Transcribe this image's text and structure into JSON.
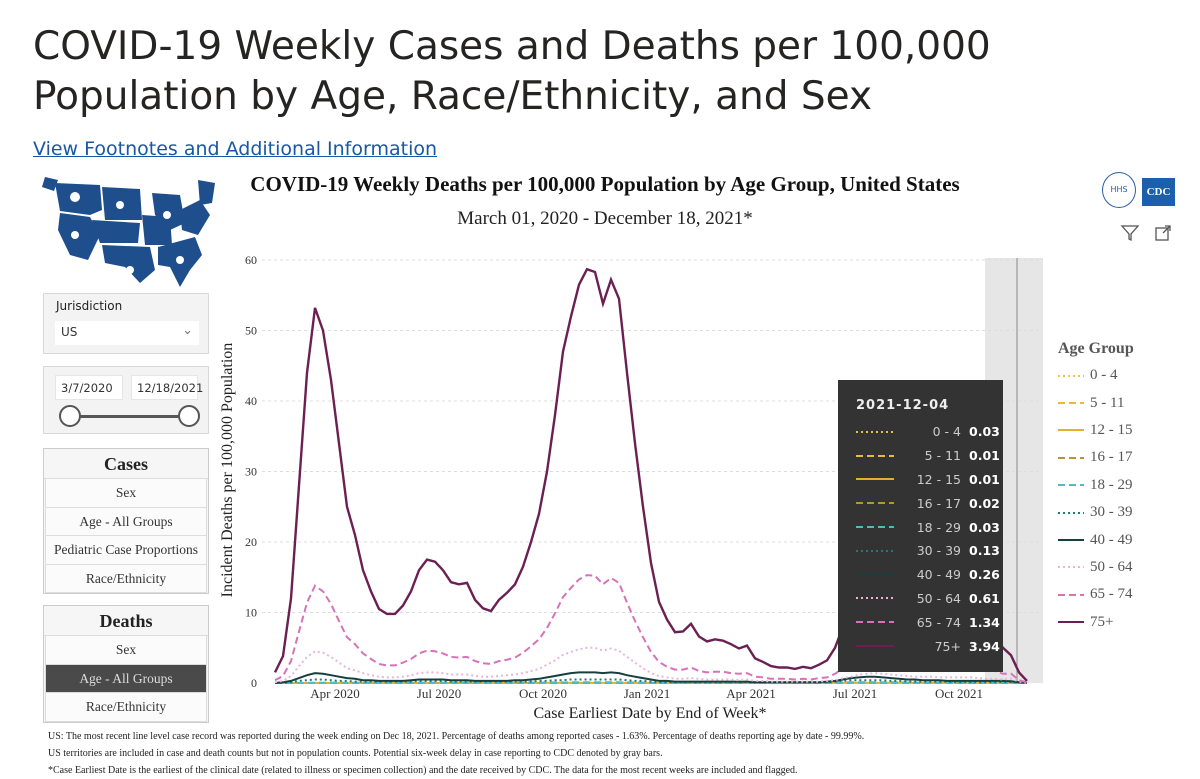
{
  "page": {
    "title": "COVID-19 Weekly Cases and Deaths per 100,000 Population by Age, Race/Ethnicity, and Sex",
    "footnote_link": "View Footnotes and Additional Information"
  },
  "logos": {
    "hhs": "HHS",
    "cdc": "CDC"
  },
  "filters": {
    "jurisdiction_label": "Jurisdiction",
    "jurisdiction_value": "US",
    "date_start": "3/7/2020",
    "date_end": "12/18/2021"
  },
  "cases": {
    "header": "Cases",
    "items": [
      "Sex",
      "Age - All Groups",
      "Pediatric Case Proportions",
      "Race/Ethnicity"
    ]
  },
  "deaths": {
    "header": "Deaths",
    "items": [
      "Sex",
      "Age - All Groups",
      "Race/Ethnicity"
    ],
    "selected": "Age - All Groups"
  },
  "tooltip": {
    "date": "2021-12-04",
    "rows": [
      {
        "group": "0 - 4",
        "value": "0.03"
      },
      {
        "group": "5 - 11",
        "value": "0.01"
      },
      {
        "group": "12 - 15",
        "value": "0.01"
      },
      {
        "group": "16 - 17",
        "value": "0.02"
      },
      {
        "group": "18 - 29",
        "value": "0.03"
      },
      {
        "group": "30 - 39",
        "value": "0.13"
      },
      {
        "group": "40 - 49",
        "value": "0.26"
      },
      {
        "group": "50 - 64",
        "value": "0.61"
      },
      {
        "group": "65 - 74",
        "value": "1.34"
      },
      {
        "group": "75+",
        "value": "3.94"
      }
    ]
  },
  "footnotes": [
    "US: The most recent line level case record was reported during the week ending on Dec 18, 2021. Percentage of deaths among reported cases - 1.63%. Percentage of deaths reporting age by date - 99.99%.",
    "US territories are included in case and death counts but not in population counts. Potential six-week delay in case reporting to CDC denoted by gray bars.",
    "*Case Earliest Date is the earliest of the clinical date (related to illness or specimen collection) and the date received by CDC. The data for the most recent weeks are included and flagged."
  ],
  "chart_data": {
    "type": "line",
    "title": "COVID-19 Weekly Deaths per 100,000 Population by Age Group, United States",
    "subtitle": "March 01, 2020 - December 18, 2021*",
    "xlabel": "Case Earliest Date by End of Week*",
    "ylabel": "Incident Deaths per 100,000 Population",
    "ylim": [
      0,
      60
    ],
    "yticks": [
      "0",
      "10",
      "20",
      "30",
      "40",
      "50",
      "60"
    ],
    "xticks": [
      {
        "label": "Apr 2020",
        "week": 4
      },
      {
        "label": "Jul 2020",
        "week": 17
      },
      {
        "label": "Oct 2020",
        "week": 30
      },
      {
        "label": "Jan 2021",
        "week": 43
      },
      {
        "label": "Apr 2021",
        "week": 56
      },
      {
        "label": "Jul 2021",
        "week": 69
      },
      {
        "label": "Oct 2021",
        "week": 82
      }
    ],
    "x_start": "2020-03-07",
    "x_interval": "weekly",
    "gray_delay_weeks": 6,
    "legend_title": "Age Group",
    "legend_position": "right",
    "grid": true,
    "series": [
      {
        "name": "0 - 4",
        "color": "#e3c54c",
        "dash": "dot",
        "values": [
          0,
          0,
          0,
          0,
          0.01,
          0.01,
          0.01,
          0.01,
          0.01,
          0.01,
          0.01,
          0.01,
          0.01,
          0.01,
          0.01,
          0.01,
          0.01,
          0.01,
          0.01,
          0.01,
          0.01,
          0.01,
          0.01,
          0.01,
          0.01,
          0.01,
          0.01,
          0.01,
          0.01,
          0.01,
          0.01,
          0.01,
          0.01,
          0.01,
          0.02,
          0.02,
          0.02,
          0.02,
          0.02,
          0.02,
          0.02,
          0.02,
          0.02,
          0.02,
          0.02,
          0.02,
          0.01,
          0.01,
          0.01,
          0.01,
          0.01,
          0.01,
          0.01,
          0.01,
          0.01,
          0.01,
          0.01,
          0.01,
          0.01,
          0.01,
          0.01,
          0.01,
          0.01,
          0.01,
          0.01,
          0.01,
          0.01,
          0.01,
          0.01,
          0.01,
          0.02,
          0.02,
          0.03,
          0.03,
          0.03,
          0.03,
          0.03,
          0.03,
          0.03,
          0.03,
          0.03,
          0.03,
          0.03,
          0.03,
          0.03,
          0.03,
          0.03,
          0.03,
          0.03,
          0.03,
          0.03,
          0.03,
          0.03,
          0.01,
          0
        ]
      },
      {
        "name": "5 - 11",
        "color": "#e8b93a",
        "dash": "dash",
        "values": [
          0,
          0,
          0,
          0,
          0,
          0,
          0,
          0,
          0,
          0,
          0,
          0,
          0,
          0,
          0,
          0,
          0,
          0,
          0,
          0,
          0,
          0,
          0,
          0,
          0,
          0,
          0,
          0,
          0,
          0,
          0,
          0,
          0,
          0,
          0.01,
          0.01,
          0.01,
          0.01,
          0.01,
          0.01,
          0.01,
          0.01,
          0.01,
          0.01,
          0.01,
          0.01,
          0,
          0,
          0,
          0,
          0,
          0,
          0,
          0,
          0,
          0,
          0,
          0,
          0,
          0,
          0,
          0,
          0,
          0,
          0,
          0,
          0,
          0,
          0,
          0,
          0.01,
          0.01,
          0.01,
          0.01,
          0.01,
          0.01,
          0.01,
          0.01,
          0.01,
          0.01,
          0.01,
          0.01,
          0.01,
          0.01,
          0.01,
          0.01,
          0.01,
          0.01,
          0.01,
          0.01,
          0.01,
          0.01,
          0.01,
          0,
          0
        ]
      },
      {
        "name": "12 - 15",
        "color": "#e2b12c",
        "dash": "solid",
        "values": [
          0,
          0,
          0,
          0,
          0,
          0,
          0,
          0,
          0,
          0,
          0,
          0,
          0,
          0,
          0,
          0,
          0,
          0,
          0,
          0,
          0,
          0,
          0,
          0,
          0,
          0,
          0,
          0,
          0,
          0,
          0,
          0,
          0,
          0,
          0.01,
          0.01,
          0.01,
          0.01,
          0.01,
          0.01,
          0.01,
          0.01,
          0.01,
          0.01,
          0.01,
          0.01,
          0,
          0,
          0,
          0,
          0,
          0,
          0,
          0,
          0,
          0,
          0,
          0,
          0,
          0,
          0,
          0,
          0,
          0,
          0,
          0,
          0,
          0,
          0,
          0,
          0.01,
          0.01,
          0.01,
          0.01,
          0.02,
          0.02,
          0.02,
          0.01,
          0.01,
          0.01,
          0.01,
          0.01,
          0.01,
          0.01,
          0.01,
          0.01,
          0.01,
          0.01,
          0.01,
          0.01,
          0.01,
          0.01,
          0.01,
          0,
          0
        ]
      },
      {
        "name": "16 - 17",
        "color": "#b49632",
        "dash": "dash",
        "values": [
          0,
          0,
          0,
          0,
          0,
          0.01,
          0.01,
          0.01,
          0.01,
          0.01,
          0.01,
          0.01,
          0.01,
          0.01,
          0.01,
          0.01,
          0.01,
          0.01,
          0.01,
          0.01,
          0.01,
          0.01,
          0.01,
          0.01,
          0.01,
          0.01,
          0.01,
          0.01,
          0.01,
          0.01,
          0.01,
          0.01,
          0.01,
          0.01,
          0.02,
          0.02,
          0.02,
          0.02,
          0.02,
          0.02,
          0.02,
          0.02,
          0.02,
          0.02,
          0.02,
          0.02,
          0.01,
          0.01,
          0.01,
          0.01,
          0.01,
          0.01,
          0.01,
          0.01,
          0.01,
          0.01,
          0.01,
          0.01,
          0.01,
          0.01,
          0.01,
          0.01,
          0.01,
          0.01,
          0.01,
          0.01,
          0.01,
          0.01,
          0.01,
          0.01,
          0.02,
          0.02,
          0.03,
          0.03,
          0.03,
          0.03,
          0.03,
          0.03,
          0.03,
          0.02,
          0.02,
          0.02,
          0.02,
          0.02,
          0.02,
          0.02,
          0.02,
          0.02,
          0.02,
          0.02,
          0.02,
          0.02,
          0.02,
          0.01,
          0
        ]
      },
      {
        "name": "18 - 29",
        "color": "#4fbdbd",
        "dash": "dash",
        "values": [
          0,
          0,
          0.01,
          0.02,
          0.03,
          0.04,
          0.04,
          0.04,
          0.03,
          0.03,
          0.03,
          0.03,
          0.03,
          0.03,
          0.03,
          0.03,
          0.04,
          0.05,
          0.06,
          0.06,
          0.06,
          0.05,
          0.05,
          0.05,
          0.05,
          0.04,
          0.04,
          0.04,
          0.04,
          0.04,
          0.04,
          0.05,
          0.05,
          0.06,
          0.07,
          0.08,
          0.09,
          0.1,
          0.1,
          0.1,
          0.1,
          0.1,
          0.1,
          0.1,
          0.08,
          0.07,
          0.05,
          0.04,
          0.03,
          0.03,
          0.03,
          0.03,
          0.03,
          0.03,
          0.03,
          0.03,
          0.03,
          0.03,
          0.03,
          0.03,
          0.02,
          0.02,
          0.02,
          0.02,
          0.02,
          0.02,
          0.02,
          0.02,
          0.02,
          0.03,
          0.05,
          0.08,
          0.1,
          0.12,
          0.12,
          0.12,
          0.11,
          0.1,
          0.08,
          0.07,
          0.06,
          0.06,
          0.05,
          0.05,
          0.05,
          0.04,
          0.04,
          0.04,
          0.04,
          0.04,
          0.03,
          0.03,
          0.03,
          0.01,
          0
        ]
      },
      {
        "name": "30 - 39",
        "color": "#1e7b7b",
        "dash": "dot",
        "values": [
          0,
          0,
          0.1,
          0.3,
          0.4,
          0.5,
          0.5,
          0.4,
          0.3,
          0.3,
          0.2,
          0.2,
          0.2,
          0.2,
          0.2,
          0.2,
          0.2,
          0.2,
          0.3,
          0.3,
          0.3,
          0.3,
          0.2,
          0.2,
          0.2,
          0.2,
          0.2,
          0.2,
          0.2,
          0.2,
          0.2,
          0.2,
          0.2,
          0.3,
          0.3,
          0.4,
          0.4,
          0.5,
          0.5,
          0.5,
          0.5,
          0.5,
          0.5,
          0.5,
          0.4,
          0.3,
          0.3,
          0.2,
          0.1,
          0.1,
          0.1,
          0.1,
          0.1,
          0.1,
          0.1,
          0.1,
          0.1,
          0.1,
          0.1,
          0.1,
          0.1,
          0.1,
          0.1,
          0.1,
          0.1,
          0.1,
          0.1,
          0.1,
          0.1,
          0.1,
          0.2,
          0.3,
          0.4,
          0.4,
          0.4,
          0.4,
          0.4,
          0.3,
          0.3,
          0.2,
          0.2,
          0.2,
          0.2,
          0.2,
          0.2,
          0.1,
          0.1,
          0.1,
          0.1,
          0.1,
          0.1,
          0.1,
          0.13,
          0.1,
          0
        ]
      },
      {
        "name": "40 - 49",
        "color": "#173f3f",
        "dash": "solid",
        "values": [
          0,
          0.1,
          0.3,
          0.7,
          1.1,
          1.4,
          1.3,
          1.1,
          0.9,
          0.7,
          0.6,
          0.4,
          0.4,
          0.3,
          0.3,
          0.3,
          0.3,
          0.4,
          0.5,
          0.5,
          0.5,
          0.5,
          0.4,
          0.4,
          0.4,
          0.3,
          0.3,
          0.3,
          0.3,
          0.3,
          0.4,
          0.4,
          0.5,
          0.6,
          0.8,
          1,
          1.2,
          1.4,
          1.5,
          1.5,
          1.5,
          1.4,
          1.5,
          1.4,
          1.1,
          0.9,
          0.7,
          0.5,
          0.3,
          0.3,
          0.2,
          0.2,
          0.2,
          0.2,
          0.2,
          0.2,
          0.2,
          0.2,
          0.2,
          0.2,
          0.1,
          0.1,
          0.1,
          0.1,
          0.1,
          0.1,
          0.1,
          0.1,
          0.1,
          0.2,
          0.3,
          0.5,
          0.7,
          0.8,
          0.9,
          0.9,
          0.8,
          0.7,
          0.6,
          0.5,
          0.5,
          0.4,
          0.4,
          0.4,
          0.3,
          0.3,
          0.3,
          0.3,
          0.3,
          0.3,
          0.3,
          0.3,
          0.26,
          0.1,
          0
        ]
      },
      {
        "name": "50 - 64",
        "color": "#e8b4da",
        "dash": "dot",
        "values": [
          0.1,
          0.3,
          1,
          2.4,
          3.7,
          4.5,
          4.3,
          3.7,
          2.9,
          2.1,
          1.8,
          1.4,
          1.1,
          0.9,
          0.8,
          0.8,
          0.9,
          1.1,
          1.4,
          1.5,
          1.5,
          1.4,
          1.2,
          1.2,
          1.2,
          1,
          0.9,
          0.9,
          1,
          1.1,
          1.2,
          1.4,
          1.7,
          2,
          2.6,
          3.2,
          4,
          4.4,
          4.8,
          5,
          5,
          4.6,
          4.9,
          4.6,
          3.7,
          2.9,
          2.1,
          1.4,
          1,
          0.8,
          0.6,
          0.6,
          0.7,
          0.6,
          0.5,
          0.5,
          0.5,
          0.5,
          0.4,
          0.5,
          0.3,
          0.3,
          0.2,
          0.2,
          0.2,
          0.2,
          0.2,
          0.2,
          0.2,
          0.3,
          0.4,
          0.7,
          0.9,
          1.2,
          1.3,
          1.4,
          1.3,
          1.2,
          1.1,
          1,
          0.9,
          0.9,
          0.9,
          0.8,
          0.8,
          0.8,
          0.8,
          0.8,
          0.7,
          0.6,
          0.6,
          0.5,
          0.61,
          0.2,
          0
        ]
      },
      {
        "name": "65 - 74",
        "color": "#d672b8",
        "dash": "dash",
        "values": [
          0.4,
          1,
          3.1,
          7.3,
          11.4,
          13.8,
          13,
          11.2,
          8.8,
          6.5,
          5.5,
          4.2,
          3.4,
          2.7,
          2.5,
          2.5,
          2.9,
          3.4,
          4.2,
          4.6,
          4.5,
          4.2,
          3.7,
          3.6,
          3.7,
          3.1,
          2.8,
          2.7,
          3.1,
          3.3,
          3.6,
          4.3,
          5.2,
          6.2,
          7.8,
          9.9,
          12.2,
          13.5,
          14.7,
          15.3,
          15.2,
          14,
          14.9,
          14.2,
          11.4,
          8.8,
          6.5,
          4.4,
          3,
          2.3,
          1.9,
          1.9,
          2.2,
          1.7,
          1.5,
          1.6,
          1.6,
          1.4,
          1.3,
          1.4,
          0.9,
          0.8,
          0.6,
          0.6,
          0.6,
          0.5,
          0.6,
          0.5,
          0.7,
          0.8,
          1.3,
          2.1,
          2.9,
          3.6,
          4,
          4.2,
          4,
          3.8,
          3.4,
          3,
          2.7,
          2.6,
          2.6,
          2.5,
          2.5,
          2.3,
          2.3,
          2.3,
          2.2,
          2,
          1.7,
          1.3,
          1.34,
          0.4,
          0.1
        ]
      },
      {
        "name": "75+",
        "color": "#6b1f52",
        "dash": "solid",
        "values": [
          1.5,
          3.8,
          12,
          28,
          44,
          53.2,
          50,
          43,
          34,
          25,
          21,
          16,
          13,
          10.5,
          9.8,
          9.8,
          11,
          13,
          16,
          17.5,
          17.2,
          16,
          14.3,
          14,
          14.2,
          11.8,
          10.6,
          10.2,
          11.8,
          12.8,
          14,
          16.5,
          20,
          24,
          30,
          38,
          47,
          52,
          56.5,
          58.7,
          58.3,
          53.8,
          57.2,
          54.5,
          44,
          34,
          25,
          17,
          11.5,
          9,
          7.2,
          7.3,
          8.4,
          6.6,
          5.9,
          6.2,
          6,
          5.5,
          4.9,
          5.3,
          3.5,
          3,
          2.4,
          2.2,
          2.2,
          2,
          2.3,
          2.1,
          2.6,
          3.2,
          5,
          8,
          11,
          14,
          15.5,
          16.2,
          15.5,
          14.5,
          13,
          11.5,
          10.5,
          10,
          10,
          9.8,
          9.5,
          9,
          9,
          9,
          8.5,
          7.5,
          6.5,
          5,
          3.94,
          1.5,
          0.3
        ]
      }
    ]
  }
}
